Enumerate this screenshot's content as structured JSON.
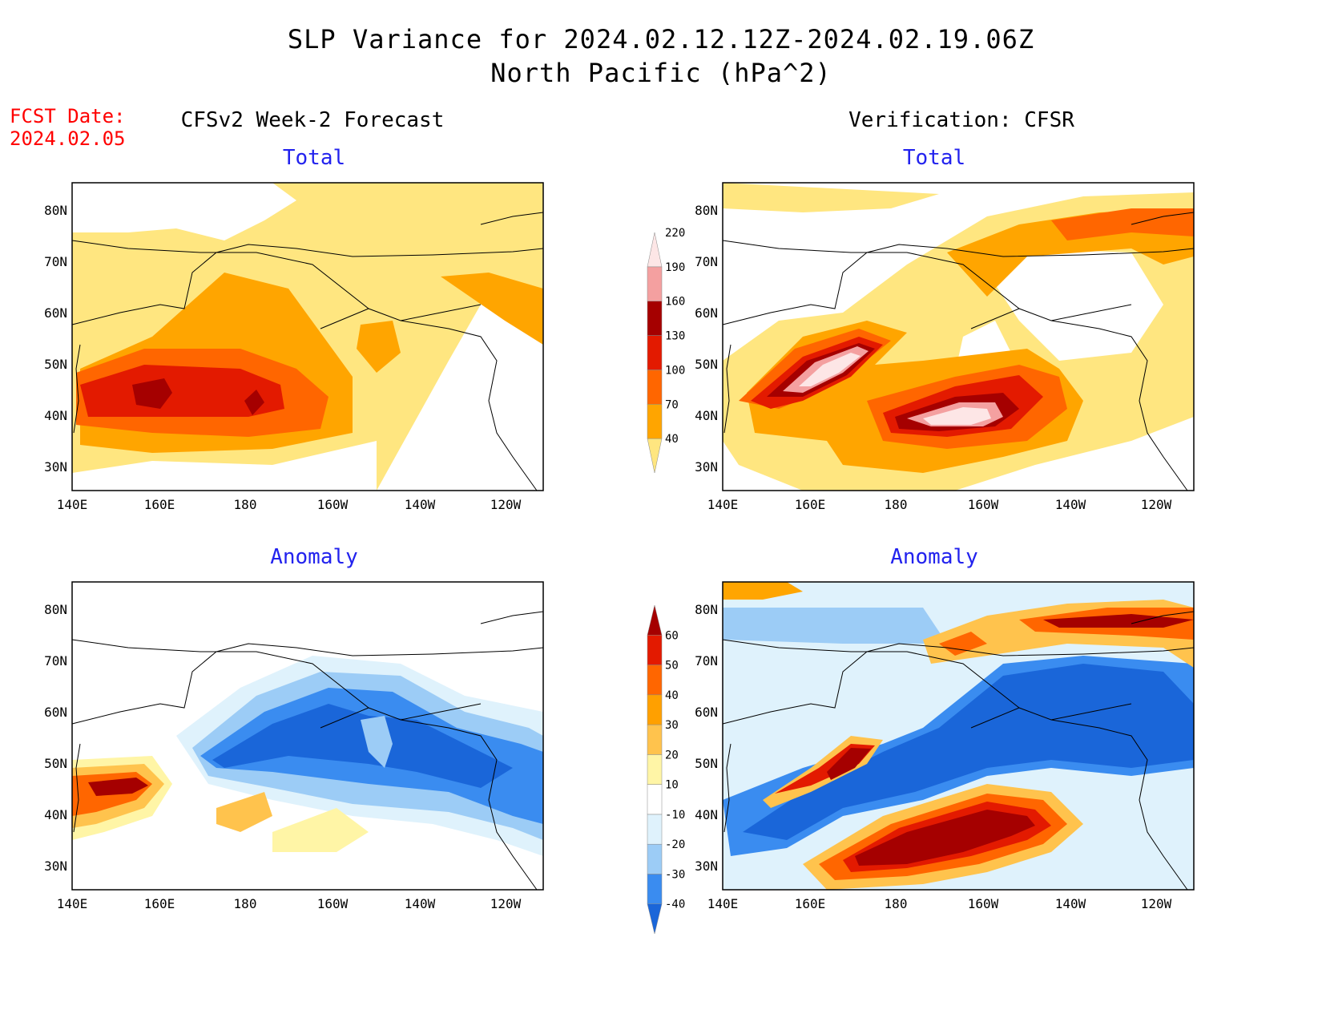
{
  "header": {
    "title_line1": "SLP Variance for 2024.02.12.12Z-2024.02.19.06Z",
    "title_line2": "North Pacific (hPa^2)",
    "fcst_label": "FCST Date:",
    "fcst_date": "2024.02.05",
    "left_column": "CFSv2 Week-2 Forecast",
    "right_column": "Verification: CFSR"
  },
  "panels": {
    "top_left": "Total",
    "top_right": "Total",
    "bottom_left": "Anomaly",
    "bottom_right": "Anomaly"
  },
  "axes": {
    "lat_labels": [
      "80N",
      "70N",
      "60N",
      "50N",
      "40N",
      "30N"
    ],
    "lon_labels": [
      "140E",
      "160E",
      "180",
      "160W",
      "140W",
      "120W"
    ]
  },
  "colorbars": {
    "total": {
      "levels": [
        "40",
        "70",
        "100",
        "130",
        "160",
        "190",
        "220"
      ],
      "colors": [
        "#ffe680",
        "#ffa500",
        "#ff6600",
        "#e31a00",
        "#a50000",
        "#f4a0a0",
        "#fde6e6"
      ]
    },
    "anomaly": {
      "levels": [
        "-40",
        "-30",
        "-20",
        "-10",
        "10",
        "20",
        "30",
        "40",
        "50",
        "60"
      ],
      "colors": [
        "#1a66d9",
        "#3a8cf0",
        "#9cccf6",
        "#dff2fc",
        "#ffffff",
        "#fff5a6",
        "#ffc34d",
        "#ffa000",
        "#ff6600",
        "#e31a00",
        "#a50000"
      ]
    }
  }
}
